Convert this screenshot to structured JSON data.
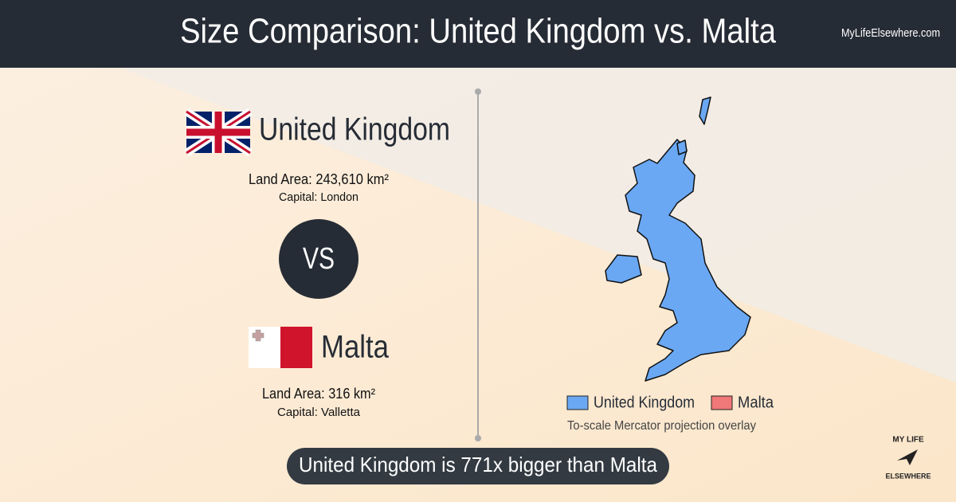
{
  "header": {
    "title": "Size Comparison: United Kingdom vs. Malta",
    "site": "MyLifeElsewhere.com"
  },
  "countries": [
    {
      "name": "United Kingdom",
      "land_area": "Land Area: 243,610 km²",
      "capital": "Capital: London"
    },
    {
      "name": "Malta",
      "land_area": "Land Area: 316 km²",
      "capital": "Capital: Valletta"
    }
  ],
  "vs": "VS",
  "map": {
    "legend": [
      {
        "name": "United Kingdom",
        "color": "#6aa8f4"
      },
      {
        "name": "Malta",
        "color": "#f07878"
      }
    ],
    "note": "To-scale Mercator projection overlay"
  },
  "summary": "United Kingdom is 771x bigger than Malta",
  "logo": {
    "top": "MY LIFE",
    "bottom": "ELSEWHERE"
  }
}
